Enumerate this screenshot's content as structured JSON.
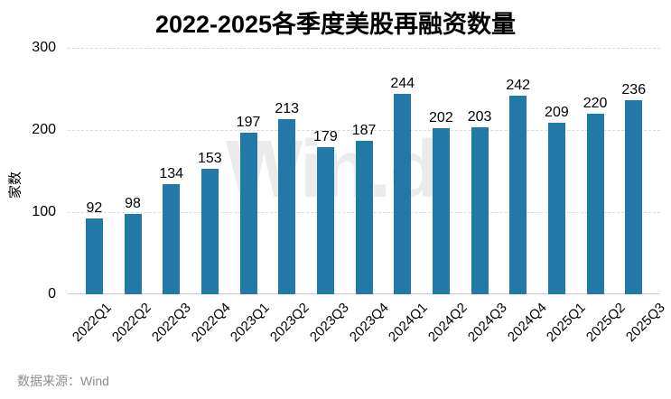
{
  "chart_data": {
    "type": "bar",
    "title": "2022-2025各季度美股再融资数量",
    "categories": [
      "2022Q1",
      "2022Q2",
      "2022Q3",
      "2022Q4",
      "2023Q1",
      "2023Q2",
      "2023Q3",
      "2023Q4",
      "2024Q1",
      "2024Q2",
      "2024Q3",
      "2024Q4",
      "2025Q1",
      "2025Q2",
      "2025Q3"
    ],
    "values": [
      92,
      98,
      134,
      153,
      197,
      213,
      179,
      187,
      244,
      202,
      203,
      242,
      209,
      220,
      236
    ],
    "xlabel": "",
    "ylabel": "家数",
    "ylim": [
      0,
      300
    ],
    "yticks": [
      0,
      100,
      200,
      300
    ],
    "grid": "horizontal-dashed",
    "legend": "none",
    "bar_color": "#2279A8",
    "value_labels_shown": true,
    "xtick_rotation_deg": 45
  },
  "watermark_text": "Win.d",
  "source_text": "数据来源：Wind",
  "colors": {
    "bar": "#2279A8",
    "grid": "#d9d9d9",
    "baseline": "#cccccc",
    "watermark": "#ebebeb",
    "title_text": "#000000",
    "tick_text": "#000000",
    "source_text": "#8c8c8c",
    "background": "#ffffff"
  }
}
